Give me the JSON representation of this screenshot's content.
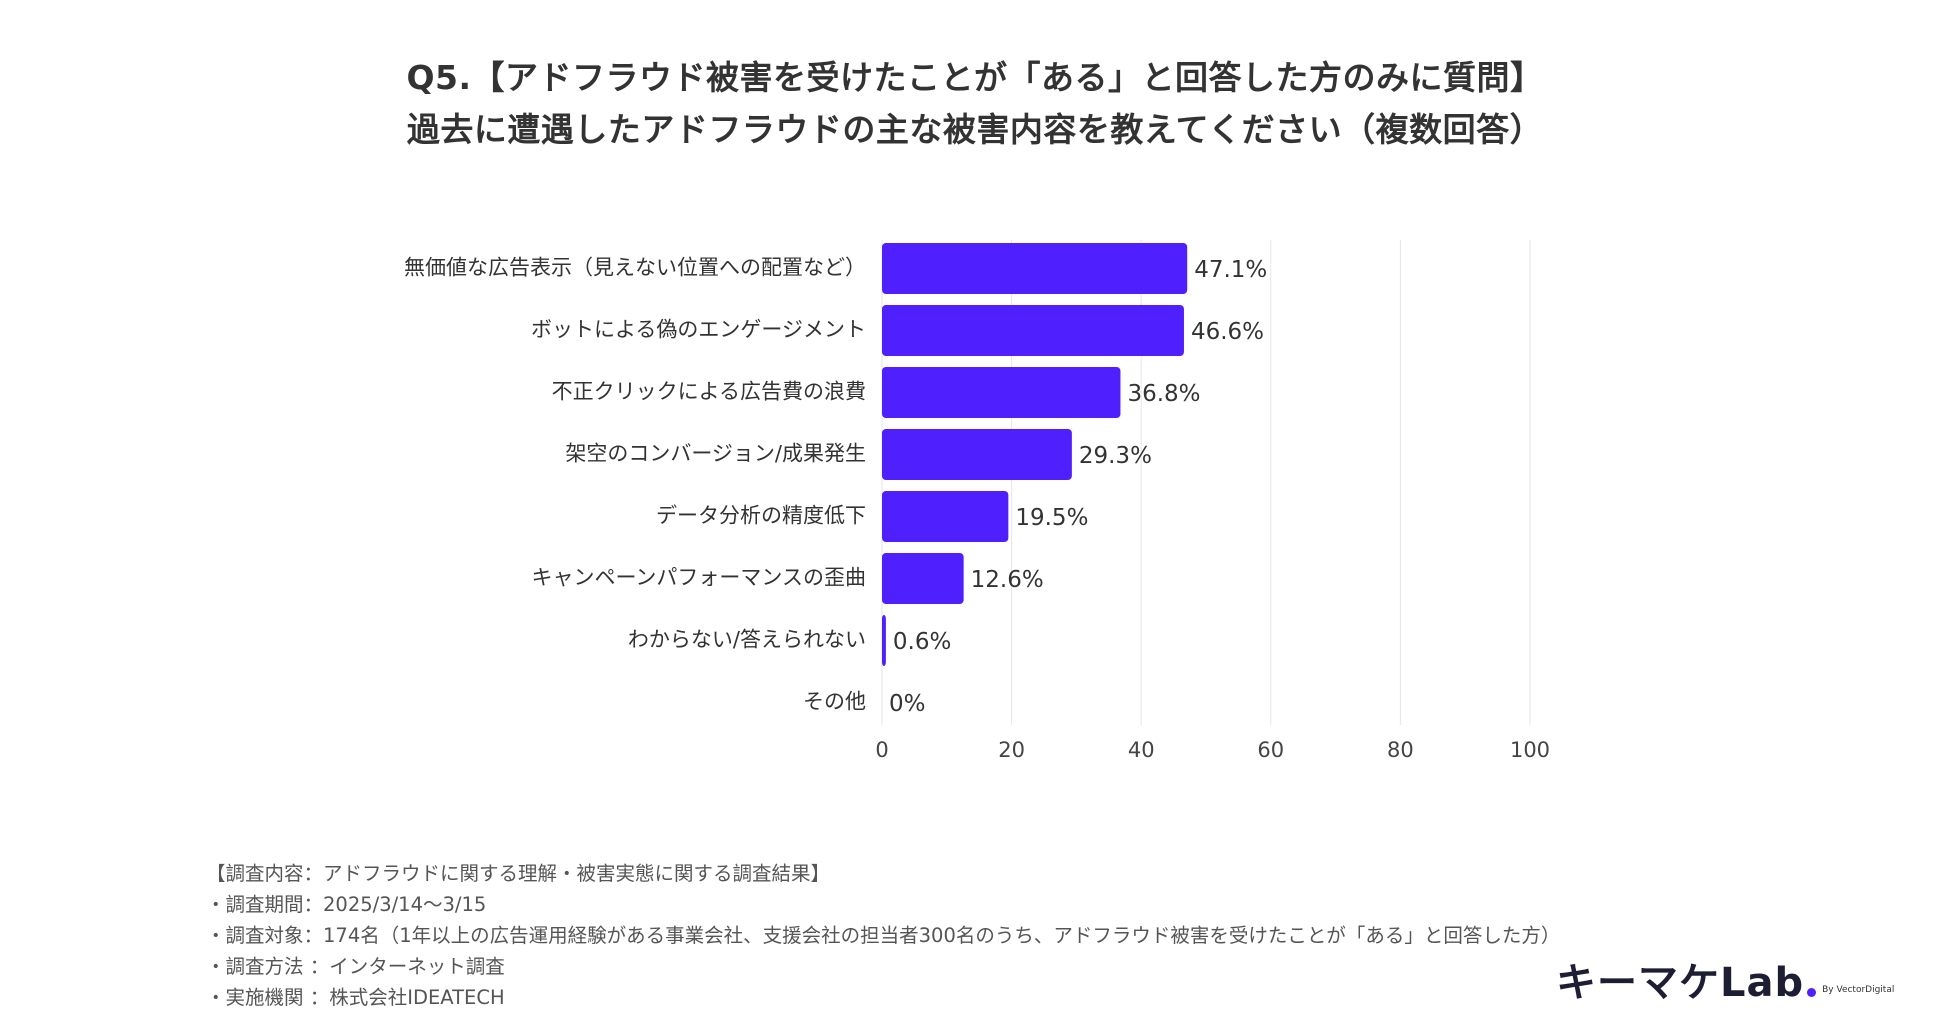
{
  "title": {
    "line1": "Q5.【アドフラウド被害を受けたことが「ある」と回答した方のみに質問】",
    "line2": "過去に遭遇したアドフラウドの主な被害内容を教えてください（複数回答）"
  },
  "chart_data": {
    "type": "bar",
    "orientation": "horizontal",
    "categories": [
      "無価値な広告表示（見えない位置への配置など）",
      "ボットによる偽のエンゲージメント",
      "不正クリックによる広告費の浪費",
      "架空のコンバージョン/成果発生",
      "データ分析の精度低下",
      "キャンペーンパフォーマンスの歪曲",
      "わからない/答えられない",
      "その他"
    ],
    "values": [
      47.1,
      46.6,
      36.8,
      29.3,
      19.5,
      12.6,
      0.6,
      0
    ],
    "data_labels": [
      "47.1%",
      "46.6%",
      "36.8%",
      "29.3%",
      "19.5%",
      "12.6%",
      "0.6%",
      "0%"
    ],
    "xlim": [
      0,
      100
    ],
    "xticks": [
      0,
      20,
      40,
      60,
      80,
      100
    ],
    "grid": "vertical",
    "legend": "none",
    "bar_color": "#4f1ffd",
    "grid_color": "#e6e6e6"
  },
  "notes": [
    "【調査内容：アドフラウドに関する理解・被害実態に関する調査結果】",
    "・調査期間：2025/3/14〜3/15",
    "・調査対象：174名（1年以上の広告運用経験がある事業会社、支援会社の担当者300名のうち、アドフラウド被害を受けたことが「ある」と回答した方）",
    "・調査方法 ：インターネット調査",
    "・実施機関 ：株式会社IDEATECH"
  ],
  "logo": {
    "text": "キーマケLab",
    "byline": "By VectorDigital",
    "accent_color": "#4f1ffd"
  }
}
